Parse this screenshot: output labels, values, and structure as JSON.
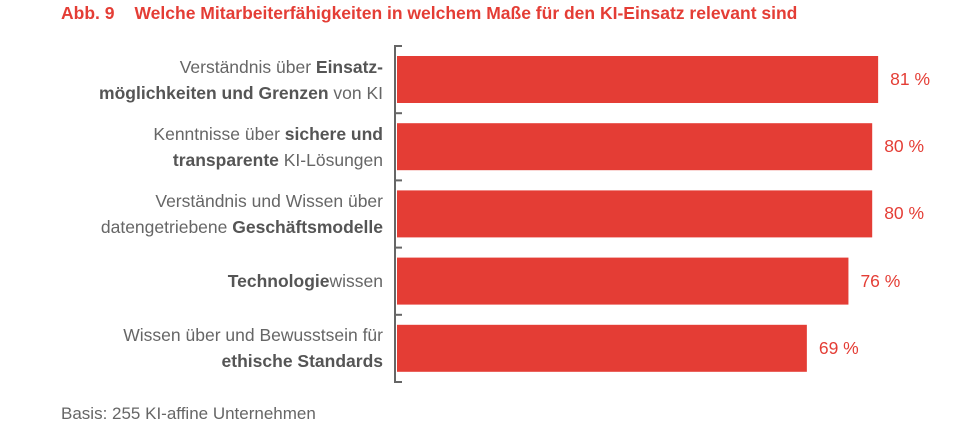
{
  "title": {
    "number": "Abb. 9",
    "text": "Welche Mitarbeiterfähigkeiten in welchem Maße für den KI-Einsatz relevant sind"
  },
  "footnote": "Basis: 255 KI-affine Unternehmen",
  "colors": {
    "bar": "#e43d35",
    "axis": "#666666",
    "label": "#666666"
  },
  "chart_data": {
    "type": "bar",
    "orientation": "horizontal",
    "xlim": [
      0,
      100
    ],
    "grid": false,
    "categories": [
      [
        [
          {
            "t": "Verständnis über ",
            "b": false
          },
          {
            "t": "Einsatz-",
            "b": true
          }
        ],
        [
          {
            "t": "möglichkeiten und Grenzen",
            "b": true
          },
          {
            "t": " von KI",
            "b": false
          }
        ]
      ],
      [
        [
          {
            "t": "Kenntnisse über ",
            "b": false
          },
          {
            "t": "sichere und",
            "b": true
          }
        ],
        [
          {
            "t": "transparente",
            "b": true
          },
          {
            "t": " KI-Lösungen",
            "b": false
          }
        ]
      ],
      [
        [
          {
            "t": "Verständnis und Wissen über",
            "b": false
          }
        ],
        [
          {
            "t": "datengetriebene ",
            "b": false
          },
          {
            "t": "Geschäftsmodelle",
            "b": true
          }
        ]
      ],
      [
        [
          {
            "t": "Technologie",
            "b": true
          },
          {
            "t": "wissen",
            "b": false
          }
        ]
      ],
      [
        [
          {
            "t": "Wissen über und Bewusstsein für",
            "b": false
          }
        ],
        [
          {
            "t": "ethische Standards",
            "b": true
          }
        ]
      ]
    ],
    "values": [
      81,
      80,
      80,
      76,
      69
    ],
    "value_labels": [
      "81 %",
      "80 %",
      "80 %",
      "76 %",
      "69 %"
    ]
  }
}
